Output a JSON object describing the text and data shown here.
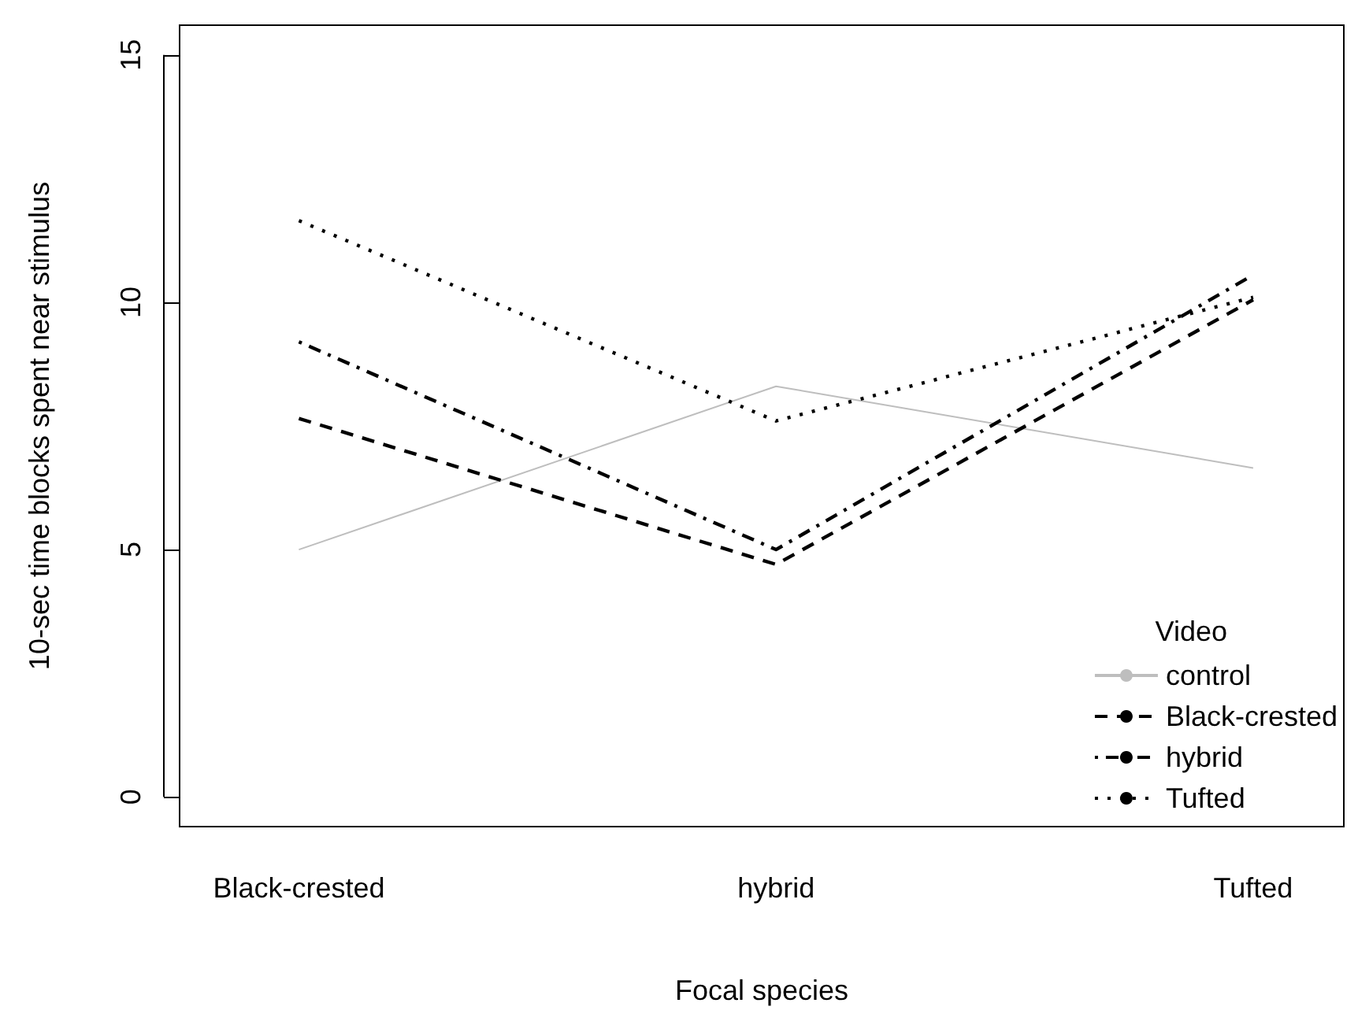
{
  "chart_data": {
    "type": "line",
    "xlabel": "Focal species",
    "ylabel": "10-sec time blocks spent near stimulus",
    "legend_title": "Video",
    "legend": "bottom right",
    "grid": false,
    "marker": "none",
    "categories": [
      "Black-crested",
      "hybrid",
      "Tufted"
    ],
    "ylim": [
      -0.6,
      15.6
    ],
    "yticks": [
      0,
      5,
      10,
      15
    ],
    "series": [
      {
        "name": "control",
        "color": "#bebebe",
        "line_style": "solid",
        "values": [
          5.0,
          8.3,
          6.65
        ]
      },
      {
        "name": "Black-crested",
        "color": "#000000",
        "line_style": "dashed",
        "values": [
          7.65,
          4.7,
          10.05
        ]
      },
      {
        "name": "hybrid",
        "color": "#000000",
        "line_style": "dashdot",
        "values": [
          9.2,
          5.0,
          10.55
        ]
      },
      {
        "name": "Tufted",
        "color": "#000000",
        "line_style": "dotted",
        "values": [
          11.65,
          7.6,
          10.1
        ]
      }
    ]
  }
}
